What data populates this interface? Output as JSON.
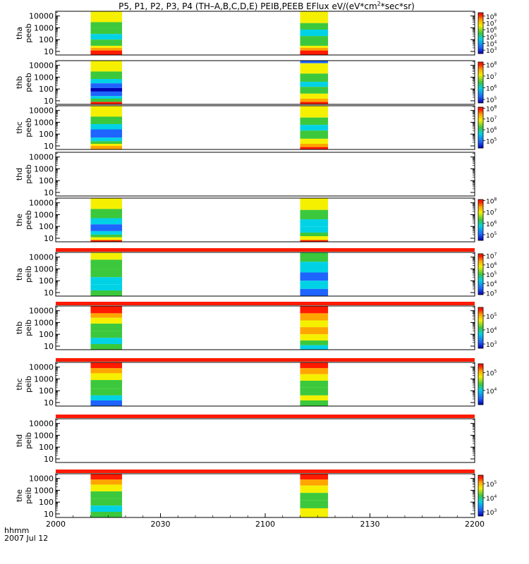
{
  "title_parts": [
    "P5, P1, P2, P3, P4 (TH–A,B,C,D,E) PEIB,PEEB EFlux eV/(eV*cm",
    "2",
    "*sec*sr)"
  ],
  "footer": {
    "time_label": "hhmm",
    "date_label": "2007 Jul 12"
  },
  "palette": {
    "red": "#ff1a00",
    "orange": "#ffa500",
    "yellow": "#f5f000",
    "green": "#3cc83c",
    "cyan": "#00d2e6",
    "blue": "#1e64ff",
    "dark_blue": "#0000b4"
  },
  "chart_data": {
    "type": "heatmap",
    "x_axis": {
      "range_minutes_after_2000": [
        0,
        120
      ],
      "tick_labels": [
        "2000",
        "2030",
        "2100",
        "2130",
        "2200"
      ],
      "tick_minutes": [
        0,
        30,
        60,
        90,
        120
      ]
    },
    "data_intervals_minutes": [
      [
        10,
        19
      ],
      [
        70,
        78
      ]
    ],
    "energy_range_eV": [
      5,
      25000
    ],
    "panels": [
      {
        "probe": "tha",
        "product": "peeb",
        "y_ticks": [
          "10000",
          "1000",
          "100",
          "10"
        ],
        "y_tick_values": [
          10000,
          1000,
          100,
          10
        ],
        "cbar_labels": [
          {
            "b": "10",
            "e": "8"
          },
          {
            "b": "10",
            "e": "7"
          },
          {
            "b": "10",
            "e": "6"
          },
          {
            "b": "10",
            "e": "5"
          },
          {
            "b": "10",
            "e": "4"
          },
          {
            "b": "10",
            "e": "3"
          }
        ],
        "cbar_exponents": [
          8,
          7,
          6,
          5,
          4,
          3
        ],
        "cbar_range_exp": [
          2.5,
          8.5
        ],
        "bands": [
          [
            "yellow",
            25000
          ],
          [
            "green",
            3000
          ],
          [
            "green",
            1000
          ],
          [
            "cyan",
            300
          ],
          [
            "green",
            100
          ],
          [
            "yellow",
            30
          ],
          [
            "orange",
            20
          ],
          [
            "red",
            12
          ],
          [
            "red",
            5
          ]
        ],
        "bands2": [
          [
            "yellow",
            25000
          ],
          [
            "green",
            2500
          ],
          [
            "cyan",
            700
          ],
          [
            "green",
            200
          ],
          [
            "yellow",
            30
          ],
          [
            "orange",
            20
          ],
          [
            "red",
            12
          ],
          [
            "red",
            5
          ]
        ]
      },
      {
        "probe": "thb",
        "product": "peeb",
        "y_ticks": [
          "10000",
          "1000",
          "100",
          "10"
        ],
        "y_tick_values": [
          10000,
          1000,
          100,
          10
        ],
        "cbar_labels": [
          {
            "b": "10",
            "e": "8"
          },
          {
            "b": "10",
            "e": "7"
          },
          {
            "b": "10",
            "e": "6"
          },
          {
            "b": "10",
            "e": "5"
          }
        ],
        "cbar_exponents": [
          8,
          7,
          6,
          5
        ],
        "cbar_range_exp": [
          4.7,
          8.2
        ],
        "bands": [
          [
            "yellow",
            25000
          ],
          [
            "green",
            3000
          ],
          [
            "cyan",
            700
          ],
          [
            "blue",
            300
          ],
          [
            "dark_blue",
            120
          ],
          [
            "blue",
            60
          ],
          [
            "cyan",
            25
          ],
          [
            "green",
            15
          ],
          [
            "red",
            8
          ]
        ],
        "bands2": [
          [
            "blue",
            25000
          ],
          [
            "yellow",
            15000
          ],
          [
            "green",
            2000
          ],
          [
            "cyan",
            400
          ],
          [
            "green",
            150
          ],
          [
            "yellow",
            40
          ],
          [
            "orange",
            15
          ],
          [
            "red",
            8
          ]
        ]
      },
      {
        "probe": "thc",
        "product": "peeb",
        "y_ticks": [
          "10000",
          "1000",
          "100",
          "10"
        ],
        "y_tick_values": [
          10000,
          1000,
          100,
          10
        ],
        "cbar_labels": [
          {
            "b": "10",
            "e": "8"
          },
          {
            "b": "10",
            "e": "7"
          },
          {
            "b": "10",
            "e": "6"
          },
          {
            "b": "10",
            "e": "5"
          }
        ],
        "cbar_exponents": [
          8,
          7,
          6,
          5
        ],
        "cbar_range_exp": [
          4.3,
          8.1
        ],
        "bands": [
          [
            "yellow",
            25000
          ],
          [
            "green",
            3000
          ],
          [
            "cyan",
            700
          ],
          [
            "blue",
            250
          ],
          [
            "cyan",
            50
          ],
          [
            "green",
            25
          ],
          [
            "yellow",
            15
          ],
          [
            "orange",
            10
          ],
          [
            "red",
            5
          ]
        ],
        "bands2": [
          [
            "yellow",
            25000
          ],
          [
            "green",
            2500
          ],
          [
            "cyan",
            600
          ],
          [
            "green",
            200
          ],
          [
            "yellow",
            40
          ],
          [
            "orange",
            15
          ],
          [
            "red",
            8
          ]
        ]
      },
      {
        "probe": "thd",
        "product": "peeb",
        "y_ticks": [
          "10000",
          "1000",
          "100",
          "10"
        ],
        "y_tick_values": [
          10000,
          1000,
          100,
          10
        ],
        "cbar_labels": [],
        "cbar_exponents": [],
        "cbar_range_exp": [
          0,
          1
        ],
        "bands": [],
        "bands2": []
      },
      {
        "probe": "the",
        "product": "peeb",
        "y_ticks": [
          "10000",
          "1000",
          "100",
          "10"
        ],
        "y_tick_values": [
          10000,
          1000,
          100,
          10
        ],
        "cbar_labels": [
          {
            "b": "10",
            "e": "8"
          },
          {
            "b": "10",
            "e": "7"
          },
          {
            "b": "10",
            "e": "6"
          },
          {
            "b": "10",
            "e": "5"
          }
        ],
        "cbar_exponents": [
          8,
          7,
          6,
          5
        ],
        "cbar_range_exp": [
          4.5,
          8.1
        ],
        "bands": [
          [
            "yellow",
            25000
          ],
          [
            "green",
            3000
          ],
          [
            "cyan",
            500
          ],
          [
            "blue",
            150
          ],
          [
            "cyan",
            40
          ],
          [
            "green",
            20
          ],
          [
            "yellow",
            12
          ],
          [
            "red",
            7
          ]
        ],
        "bands2": [
          [
            "yellow",
            25000
          ],
          [
            "green",
            2500
          ],
          [
            "cyan",
            400
          ],
          [
            "cyan",
            100
          ],
          [
            "green",
            30
          ],
          [
            "yellow",
            15
          ],
          [
            "red",
            7
          ]
        ]
      },
      {
        "probe": "tha",
        "product": "peib",
        "y_ticks": [
          "10000",
          "1000",
          "100",
          "10"
        ],
        "y_tick_values": [
          10000,
          1000,
          100,
          10
        ],
        "cbar_labels": [
          {
            "b": "10",
            "e": "7"
          },
          {
            "b": "10",
            "e": "6"
          },
          {
            "b": "10",
            "e": "5"
          },
          {
            "b": "10",
            "e": "4"
          },
          {
            "b": "10",
            "e": "3"
          }
        ],
        "cbar_exponents": [
          7,
          6,
          5,
          4,
          3
        ],
        "cbar_range_exp": [
          2.8,
          7.2
        ],
        "bands": [
          [
            "yellow",
            25000
          ],
          [
            "green",
            6000
          ],
          [
            "green",
            1000
          ],
          [
            "cyan",
            200
          ],
          [
            "cyan",
            50
          ],
          [
            "green",
            15
          ]
        ],
        "bands2": [
          [
            "green",
            25000
          ],
          [
            "cyan",
            4000
          ],
          [
            "blue",
            500
          ],
          [
            "cyan",
            100
          ],
          [
            "blue",
            20
          ]
        ]
      },
      {
        "probe": "thb",
        "product": "peib",
        "y_ticks": [
          "10000",
          "1000",
          "100",
          "10"
        ],
        "y_tick_values": [
          10000,
          1000,
          100,
          10
        ],
        "cbar_labels": [
          {
            "b": "10",
            "e": "5"
          },
          {
            "b": "10",
            "e": "4"
          },
          {
            "b": "10",
            "e": "3"
          }
        ],
        "cbar_exponents": [
          5,
          4,
          3
        ],
        "cbar_range_exp": [
          2.7,
          5.6
        ],
        "bands": [
          [
            "red",
            25000
          ],
          [
            "orange",
            6000
          ],
          [
            "yellow",
            2500
          ],
          [
            "green",
            800
          ],
          [
            "green",
            200
          ],
          [
            "cyan",
            50
          ],
          [
            "green",
            15
          ]
        ],
        "bands2": [
          [
            "red",
            25000
          ],
          [
            "orange",
            6000
          ],
          [
            "yellow",
            1500
          ],
          [
            "orange",
            400
          ],
          [
            "yellow",
            100
          ],
          [
            "green",
            30
          ],
          [
            "cyan",
            12
          ]
        ]
      },
      {
        "probe": "thc",
        "product": "peib",
        "y_ticks": [
          "10000",
          "1000",
          "100",
          "10"
        ],
        "y_tick_values": [
          10000,
          1000,
          100,
          10
        ],
        "cbar_labels": [
          {
            "b": "10",
            "e": "5"
          },
          {
            "b": "10",
            "e": "4"
          }
        ],
        "cbar_exponents": [
          5,
          4
        ],
        "cbar_range_exp": [
          3.2,
          5.5
        ],
        "bands": [
          [
            "red",
            25000
          ],
          [
            "orange",
            8000
          ],
          [
            "yellow",
            3000
          ],
          [
            "green",
            800
          ],
          [
            "green",
            150
          ],
          [
            "cyan",
            40
          ],
          [
            "blue",
            15
          ]
        ],
        "bands2": [
          [
            "red",
            25000
          ],
          [
            "orange",
            8000
          ],
          [
            "yellow",
            2500
          ],
          [
            "green",
            700
          ],
          [
            "green",
            200
          ],
          [
            "yellow",
            40
          ],
          [
            "green",
            15
          ]
        ]
      },
      {
        "probe": "thd",
        "product": "peib",
        "y_ticks": [
          "10000",
          "1000",
          "100",
          "10"
        ],
        "y_tick_values": [
          10000,
          1000,
          100,
          10
        ],
        "cbar_labels": [],
        "cbar_exponents": [],
        "cbar_range_exp": [
          0,
          1
        ],
        "bands": [],
        "bands2": []
      },
      {
        "probe": "the",
        "product": "peib",
        "y_ticks": [
          "10000",
          "1000",
          "100",
          "10"
        ],
        "y_tick_values": [
          10000,
          1000,
          100,
          10
        ],
        "cbar_labels": [
          {
            "b": "10",
            "e": "5"
          },
          {
            "b": "10",
            "e": "4"
          },
          {
            "b": "10",
            "e": "3"
          }
        ],
        "cbar_exponents": [
          5,
          4,
          3
        ],
        "cbar_range_exp": [
          2.7,
          5.6
        ],
        "bands": [
          [
            "red",
            25000
          ],
          [
            "orange",
            8000
          ],
          [
            "yellow",
            3000
          ],
          [
            "green",
            800
          ],
          [
            "green",
            200
          ],
          [
            "cyan",
            50
          ],
          [
            "green",
            15
          ]
        ],
        "bands2": [
          [
            "red",
            25000
          ],
          [
            "orange",
            8000
          ],
          [
            "yellow",
            2500
          ],
          [
            "green",
            600
          ],
          [
            "green",
            150
          ],
          [
            "yellow",
            30
          ]
        ]
      }
    ]
  }
}
